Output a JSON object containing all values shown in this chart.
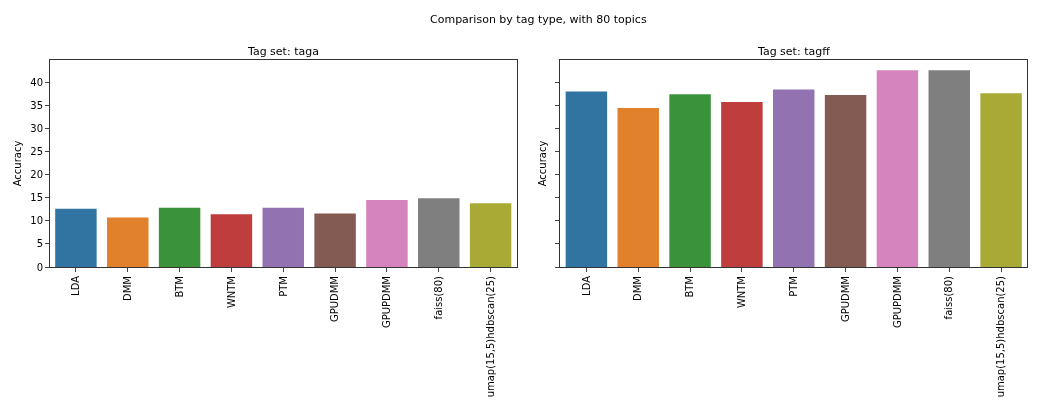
{
  "chart_data": [
    {
      "type": "bar",
      "title": "Tag set: taga",
      "ylabel": "Accuracy",
      "categories": [
        "LDA",
        "DMM",
        "BTM",
        "WNTM",
        "PTM",
        "GPUDMM",
        "GPUPDMM",
        "faiss(80)",
        "umap(15,5)hdbscan(25)"
      ],
      "values": [
        12.6,
        10.7,
        12.8,
        11.4,
        12.8,
        11.6,
        14.5,
        14.9,
        13.8
      ],
      "colors": [
        "#3274a1",
        "#e1812c",
        "#3a923a",
        "#c03d3e",
        "#9372b2",
        "#845b53",
        "#d684bd",
        "#7f7f7f",
        "#a9aa35"
      ],
      "ylim": [
        0,
        44.8
      ],
      "yticks": [
        0,
        5,
        10,
        15,
        20,
        25,
        30,
        35,
        40
      ],
      "annotations": [
        "Comparison by tag type, with 80 topics"
      ]
    },
    {
      "type": "bar",
      "title": "Tag set: tagff",
      "ylabel": "Accuracy",
      "categories": [
        "LDA",
        "DMM",
        "BTM",
        "WNTM",
        "PTM",
        "GPUDMM",
        "GPUPDMM",
        "faiss(80)",
        "umap(15,5)hdbscan(25)"
      ],
      "values": [
        38.0,
        34.4,
        37.4,
        35.7,
        38.4,
        37.2,
        42.6,
        42.6,
        37.6
      ],
      "colors": [
        "#3274a1",
        "#e1812c",
        "#3a923a",
        "#c03d3e",
        "#9372b2",
        "#845b53",
        "#d684bd",
        "#7f7f7f",
        "#a9aa35"
      ],
      "ylim": [
        0,
        44.8
      ],
      "yticks": [
        0,
        5,
        10,
        15,
        20,
        25,
        30,
        35,
        40
      ],
      "tick_labels": "x"
    }
  ]
}
